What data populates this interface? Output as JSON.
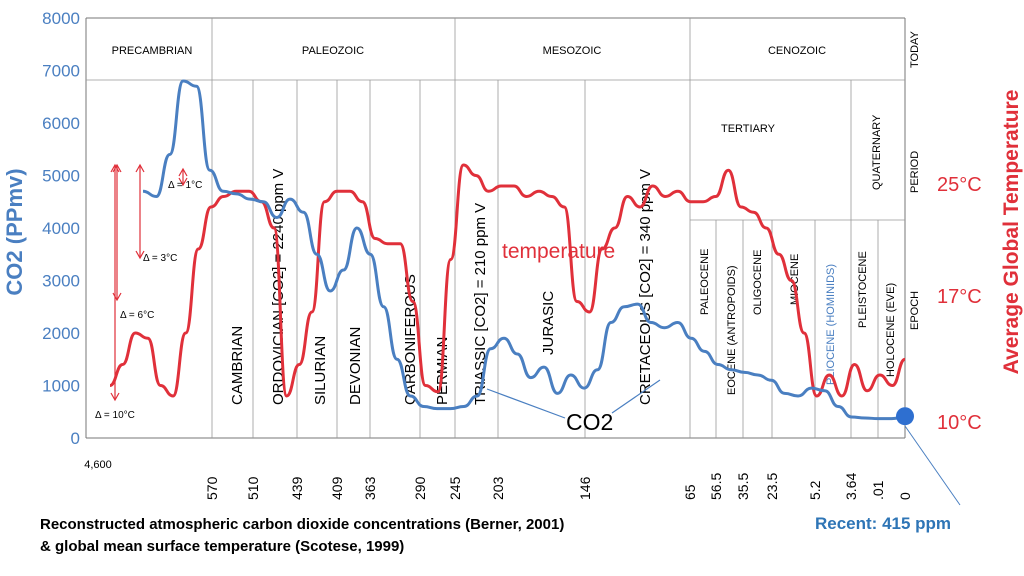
{
  "chart_data": {
    "type": "line",
    "title": "",
    "ylabel_left": "CO2 (PPmv)",
    "ylabel_right": "Average Global Temperature",
    "ylim_left": [
      0,
      8000
    ],
    "left_ticks": [
      "0",
      "1000",
      "2000",
      "3000",
      "4000",
      "5000",
      "6000",
      "7000",
      "8000"
    ],
    "right_ticks": [
      "25°C",
      "17°C",
      "10°C"
    ],
    "x_ticks": [
      "4,600",
      "570",
      "510",
      "439",
      "409",
      "363",
      "290",
      "245",
      "203",
      "146",
      "65",
      "56.5",
      "35.5",
      "23.5",
      "5.2",
      "3.64",
      ".01",
      "0"
    ],
    "eras": [
      "PRECAMBRIAN",
      "PALEOZOIC",
      "MESOZOIC",
      "CENOZOIC"
    ],
    "today_label": "TODAY",
    "row_labels": [
      "PERIOD",
      "EPOCH"
    ],
    "periods": [
      "CAMBRIAN",
      "ORDOVICIAN [CO2] = 2240 ppm V",
      "SILURIAN",
      "DEVONIAN",
      "CARBONIFEROUS",
      "PERMIAN",
      "TRIASSIC [CO2] = 210 ppm V",
      "JURASIC",
      "CRETACEOUS [CO2] = 340 ppm V"
    ],
    "tertiary_label": "TERTIARY",
    "quaternary_label": "QUATERNARY",
    "epochs": [
      "PALEOCENE",
      "EOCENE (ANTROPOIDS)",
      "OLIGOCENE",
      "MIOCENE",
      "PLIOCENE (HOMINIDS)",
      "PLEISTOCENE",
      "HOLOCENE (EVE)"
    ],
    "deltas": [
      "Δ = 1°C",
      "Δ = 3°C",
      "Δ = 6°C",
      "Δ = 10°C"
    ],
    "series": [
      {
        "name": "CO2",
        "color": "#4a7fc1",
        "values": [
          4700,
          4600,
          5400,
          6800,
          6700,
          5100,
          4700,
          4650,
          4550,
          4500,
          4200,
          4550,
          4300,
          3500,
          2800,
          3200,
          4000,
          3500,
          2500,
          1500,
          800,
          600,
          560,
          560,
          600,
          800,
          1700,
          1900,
          1600,
          1150,
          1350,
          850,
          1200,
          950,
          1300,
          2200,
          2500,
          2550,
          2200,
          2100,
          2200,
          1900,
          1650,
          1400,
          1300,
          1250,
          1200,
          1100,
          850,
          800,
          950,
          900,
          600,
          400,
          380,
          370,
          370,
          400
        ]
      },
      {
        "name": "temperature",
        "color": "#e0303a",
        "values": [
          1000,
          1400,
          2000,
          1900,
          1000,
          800,
          2000,
          3600,
          4400,
          4600,
          4700,
          4700,
          4500,
          4000,
          800,
          1400,
          2400,
          4500,
          4700,
          4700,
          4500,
          3800,
          3700,
          3700,
          2600,
          1000,
          880,
          3400,
          5200,
          5000,
          4700,
          4800,
          4800,
          4600,
          4700,
          4600,
          4400,
          2600,
          2400,
          3600,
          4000,
          4600,
          4400,
          4800,
          4600,
          4700,
          4500,
          4500,
          4600,
          5100,
          4400,
          4300,
          4000,
          3500,
          3000,
          2000,
          800,
          1200,
          800,
          1400,
          900,
          1200,
          1000,
          1500
        ]
      }
    ],
    "annotations": [
      "temperature",
      "CO2"
    ],
    "recent_point": {
      "x": "0",
      "value": 415
    }
  },
  "caption": {
    "line1": "Reconstructed atmospheric carbon dioxide concentrations (Berner, 2001)",
    "line2": "& global mean surface temperature (Scotese, 1999)"
  },
  "recent_label": "Recent: 415 ppm"
}
